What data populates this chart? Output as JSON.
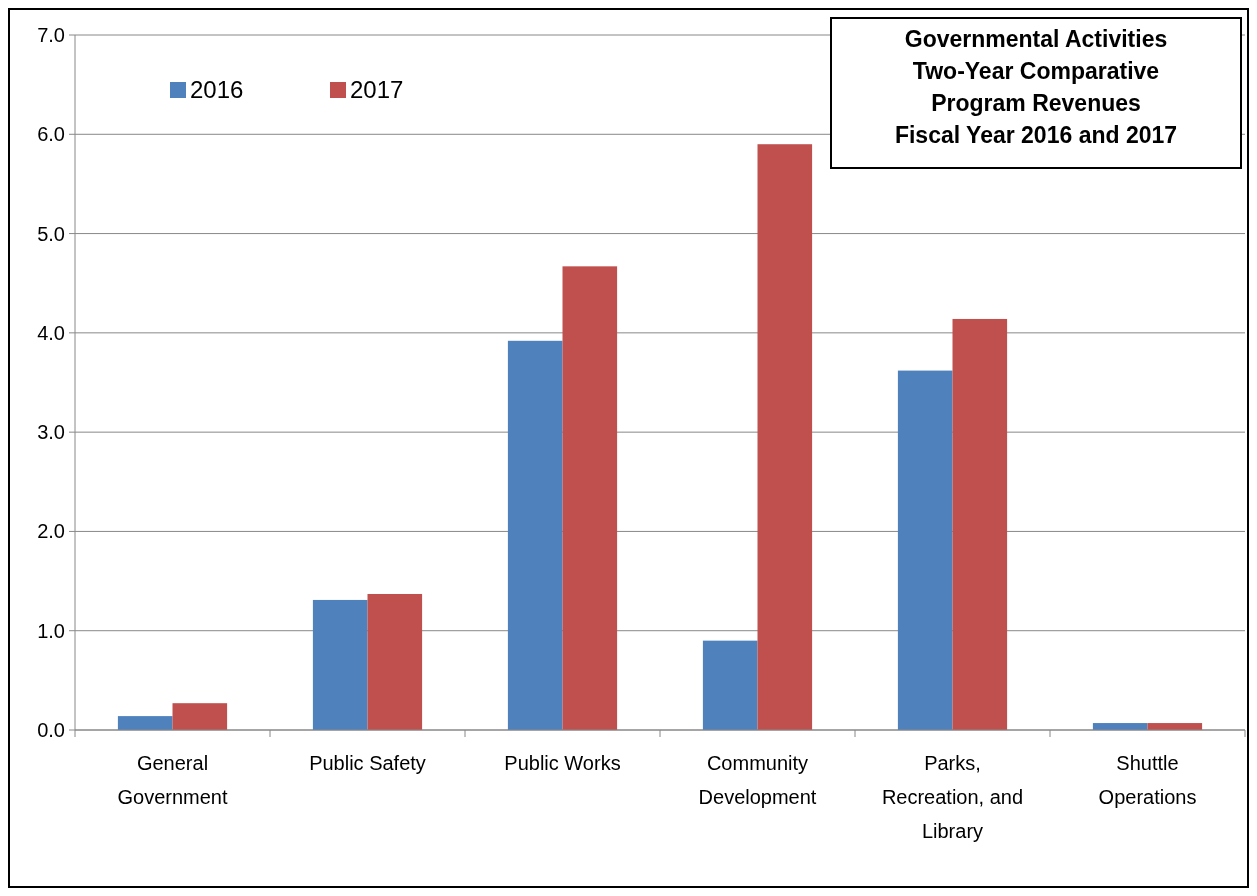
{
  "chart_data": {
    "type": "bar",
    "title": "Governmental Activities\nTwo-Year Comparative\nProgram Revenues\nFiscal Year 2016 and 2017",
    "categories": [
      "General Government",
      "Public Safety",
      "Public Works",
      "Community Development",
      "Parks, Recreation, and Library",
      "Shuttle Operations"
    ],
    "series": [
      {
        "name": "2016",
        "color": "#4f81bd",
        "values": [
          0.14,
          1.31,
          3.92,
          0.9,
          3.62,
          0.07
        ]
      },
      {
        "name": "2017",
        "color": "#c0504d",
        "values": [
          0.27,
          1.37,
          4.67,
          5.9,
          4.14,
          0.07
        ]
      }
    ],
    "ylim": [
      0,
      7
    ],
    "yticks": [
      {
        "value": 0,
        "label": "0.0"
      },
      {
        "value": 1,
        "label": "1.0"
      },
      {
        "value": 2,
        "label": "2.0"
      },
      {
        "value": 3,
        "label": "3.0"
      },
      {
        "value": 4,
        "label": "4.0"
      },
      {
        "value": 5,
        "label": "5.0"
      },
      {
        "value": 6,
        "label": "6.0"
      },
      {
        "value": 7,
        "label": "7.0"
      }
    ],
    "grid": "y",
    "legend": "top left"
  }
}
